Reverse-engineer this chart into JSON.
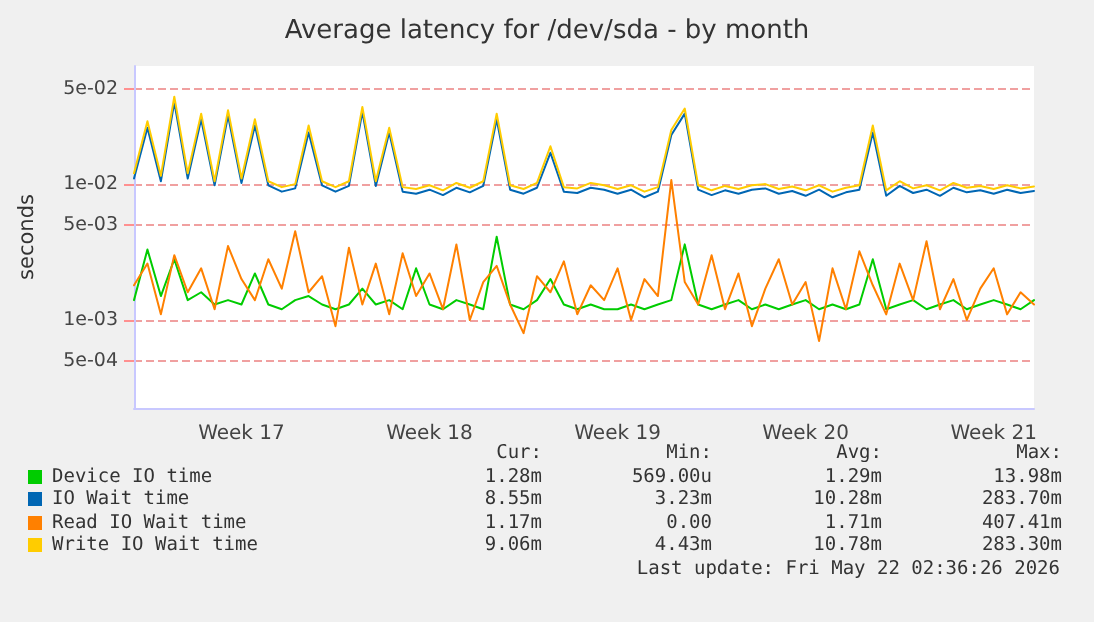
{
  "chart_data": {
    "type": "line",
    "title": "Average latency for /dev/sda - by month",
    "ylabel": "seconds",
    "log": "y",
    "grid": "y",
    "legend": "bottom",
    "marker": "none",
    "line_style": "solid",
    "categories": [
      null,
      null,
      null,
      null,
      null,
      null,
      null,
      null,
      "Week 17",
      null,
      null,
      null,
      null,
      null,
      null,
      null,
      null,
      null,
      null,
      null,
      null,
      null,
      "Week 18",
      null,
      null,
      null,
      null,
      null,
      null,
      null,
      null,
      null,
      null,
      null,
      null,
      null,
      "Week 19",
      null,
      null,
      null,
      null,
      null,
      null,
      null,
      null,
      null,
      null,
      null,
      null,
      null,
      "Week 20",
      null,
      null,
      null,
      null,
      null,
      null,
      null,
      null,
      null,
      null,
      null,
      null,
      null,
      "Week 21",
      null,
      null,
      null
    ],
    "ylim": [
      0.000225,
      0.074
    ],
    "yticks": [
      {
        "value": 0.0005,
        "label": "5e-04"
      },
      {
        "value": 0.001,
        "label": "1e-03"
      },
      {
        "value": 0.005,
        "label": "5e-03"
      },
      {
        "value": 0.01,
        "label": "1e-02"
      },
      {
        "value": 0.05,
        "label": "5e-02"
      }
    ],
    "series": [
      {
        "name": "Device IO time",
        "color": "#00cc00",
        "values": [
          0.0014,
          0.0033,
          0.0015,
          0.0028,
          0.0014,
          0.0016,
          0.0013,
          0.0014,
          0.0013,
          0.0022,
          0.0013,
          0.0012,
          0.0014,
          0.0015,
          0.0013,
          0.0012,
          0.0013,
          0.0017,
          0.0013,
          0.0014,
          0.0012,
          0.0024,
          0.0013,
          0.0012,
          0.0014,
          0.0013,
          0.0012,
          0.0041,
          0.0013,
          0.0012,
          0.0014,
          0.002,
          0.0013,
          0.0012,
          0.0013,
          0.0012,
          0.0012,
          0.0013,
          0.0012,
          0.0013,
          0.0014,
          0.0036,
          0.0013,
          0.0012,
          0.0013,
          0.0014,
          0.0012,
          0.0013,
          0.0012,
          0.0013,
          0.0014,
          0.0012,
          0.0013,
          0.0012,
          0.0013,
          0.0028,
          0.0012,
          0.0013,
          0.0014,
          0.0012,
          0.0013,
          0.0014,
          0.0012,
          0.0013,
          0.0014,
          0.0013,
          0.0012,
          0.0014
        ]
      },
      {
        "name": "IO Wait time",
        "color": "#0066b3",
        "values": [
          0.011,
          0.026,
          0.0105,
          0.04,
          0.011,
          0.03,
          0.0098,
          0.032,
          0.0102,
          0.027,
          0.0098,
          0.0088,
          0.0093,
          0.024,
          0.0098,
          0.0088,
          0.0097,
          0.034,
          0.0097,
          0.024,
          0.0088,
          0.0085,
          0.0091,
          0.0083,
          0.0094,
          0.0087,
          0.0097,
          0.03,
          0.0091,
          0.0085,
          0.0094,
          0.017,
          0.0088,
          0.0086,
          0.0094,
          0.0091,
          0.0085,
          0.0091,
          0.008,
          0.0088,
          0.023,
          0.033,
          0.0091,
          0.0083,
          0.009,
          0.0085,
          0.0091,
          0.0093,
          0.0085,
          0.0089,
          0.0082,
          0.0091,
          0.008,
          0.0087,
          0.0091,
          0.024,
          0.0082,
          0.0097,
          0.0086,
          0.0091,
          0.0082,
          0.0094,
          0.0087,
          0.009,
          0.0085,
          0.0091,
          0.0086,
          0.0089
        ]
      },
      {
        "name": "Read IO Wait time",
        "color": "#ff8000",
        "values": [
          0.0018,
          0.0026,
          0.0011,
          0.003,
          0.0016,
          0.0024,
          0.0012,
          0.0035,
          0.002,
          0.0014,
          0.0028,
          0.0017,
          0.0045,
          0.0016,
          0.0021,
          0.0009,
          0.0034,
          0.0013,
          0.0026,
          0.0011,
          0.0031,
          0.0015,
          0.0022,
          0.0012,
          0.0036,
          0.001,
          0.0019,
          0.0025,
          0.0013,
          0.0008,
          0.0021,
          0.0016,
          0.0027,
          0.0011,
          0.0018,
          0.0014,
          0.0024,
          0.001,
          0.002,
          0.0015,
          0.0107,
          0.0019,
          0.0013,
          0.003,
          0.0012,
          0.0022,
          0.0009,
          0.0017,
          0.0028,
          0.0013,
          0.0019,
          0.0007,
          0.0024,
          0.0012,
          0.0032,
          0.0018,
          0.0011,
          0.0026,
          0.0014,
          0.0038,
          0.0012,
          0.002,
          0.001,
          0.0017,
          0.0024,
          0.0011,
          0.0016,
          0.0013
        ]
      },
      {
        "name": "Write IO Wait time",
        "color": "#ffcc00",
        "values": [
          0.012,
          0.029,
          0.0115,
          0.044,
          0.012,
          0.033,
          0.0105,
          0.035,
          0.011,
          0.03,
          0.0105,
          0.0095,
          0.01,
          0.027,
          0.0105,
          0.0095,
          0.0105,
          0.037,
          0.0105,
          0.026,
          0.0095,
          0.0092,
          0.0098,
          0.009,
          0.0102,
          0.0094,
          0.0105,
          0.033,
          0.0098,
          0.0092,
          0.0102,
          0.019,
          0.0095,
          0.0093,
          0.0102,
          0.0098,
          0.0092,
          0.0098,
          0.0088,
          0.0095,
          0.025,
          0.036,
          0.0098,
          0.009,
          0.0097,
          0.0092,
          0.0098,
          0.01,
          0.0092,
          0.0096,
          0.009,
          0.0098,
          0.0088,
          0.0094,
          0.0098,
          0.027,
          0.009,
          0.0105,
          0.0093,
          0.0098,
          0.009,
          0.0102,
          0.0094,
          0.0097,
          0.0092,
          0.0098,
          0.0093,
          0.0096
        ]
      }
    ],
    "annotations": [
      "Cur:",
      "Min:",
      "Avg:",
      "Max:",
      "1.28m",
      "569.00u",
      "1.29m",
      "13.98m",
      "8.55m",
      "3.23m",
      "10.28m",
      "283.70m",
      "1.17m",
      "0.00",
      "1.71m",
      "407.41m",
      "9.06m",
      "4.43m",
      "10.78m",
      "283.30m",
      "Last update: Fri May 22 02:36:26 2026"
    ]
  }
}
